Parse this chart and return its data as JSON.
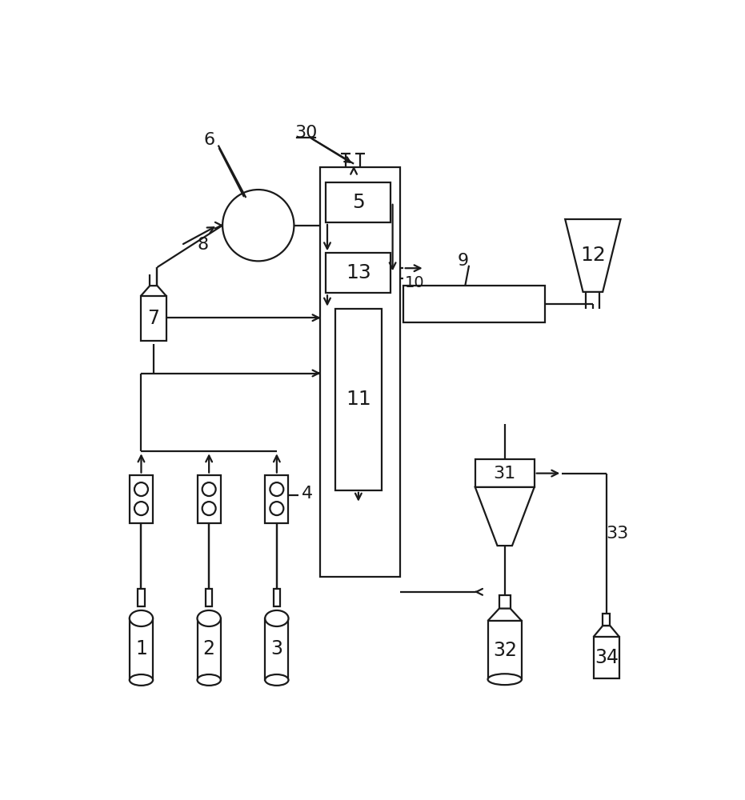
{
  "bg_color": "#ffffff",
  "lc": "#1a1a1a",
  "lw": 1.6,
  "figsize": [
    9.31,
    10.0
  ],
  "dpi": 100
}
